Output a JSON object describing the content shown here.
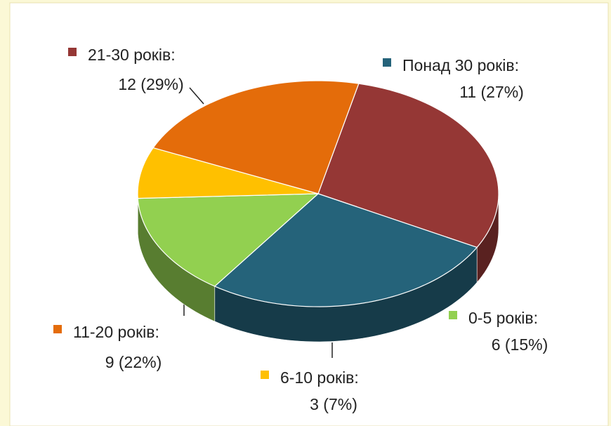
{
  "chart_data": {
    "type": "pie",
    "categories": [
      "21-30 років:",
      "Понад 30 років:",
      "0-5 років:",
      "6-10 років:",
      "11-20 років:"
    ],
    "values": [
      12,
      11,
      6,
      3,
      9
    ],
    "value_labels": [
      "12 (29%)",
      "11 (27%)",
      "6 (15%)",
      "3 (7%)",
      "9 (22%)"
    ],
    "colors": [
      "#953735",
      "#25637a",
      "#92d050",
      "#ffc000",
      "#e46c0a"
    ]
  }
}
